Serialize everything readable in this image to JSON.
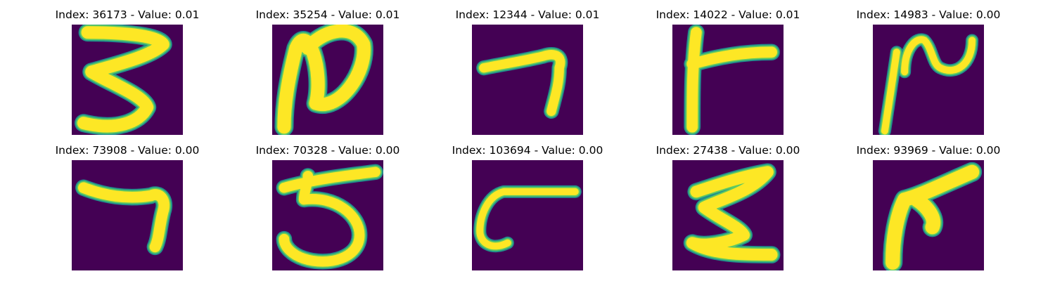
{
  "figure": {
    "colors": {
      "background": "#440154",
      "edge": "#21908d",
      "mid": "#5ec962",
      "stroke": "#fde725"
    },
    "panels": [
      {
        "title": "Index: 36173 - Value: 0.01",
        "glyph": "3"
      },
      {
        "title": "Index: 35254 - Value: 0.01",
        "glyph": "2-loop"
      },
      {
        "title": "Index: 12344 - Value: 0.01",
        "glyph": "7-flat"
      },
      {
        "title": "Index: 14022 - Value: 0.01",
        "glyph": "T-side"
      },
      {
        "title": "Index: 14983 - Value: 0.00",
        "glyph": "2-wave"
      },
      {
        "title": "Index: 73908 - Value: 0.00",
        "glyph": "7"
      },
      {
        "title": "Index: 70328 - Value: 0.00",
        "glyph": "5"
      },
      {
        "title": "Index: 103694 - Value: 0.00",
        "glyph": "c"
      },
      {
        "title": "Index: 27438 - Value: 0.00",
        "glyph": "sigma"
      },
      {
        "title": "Index: 93969 - Value: 0.00",
        "glyph": "arrow"
      }
    ]
  }
}
